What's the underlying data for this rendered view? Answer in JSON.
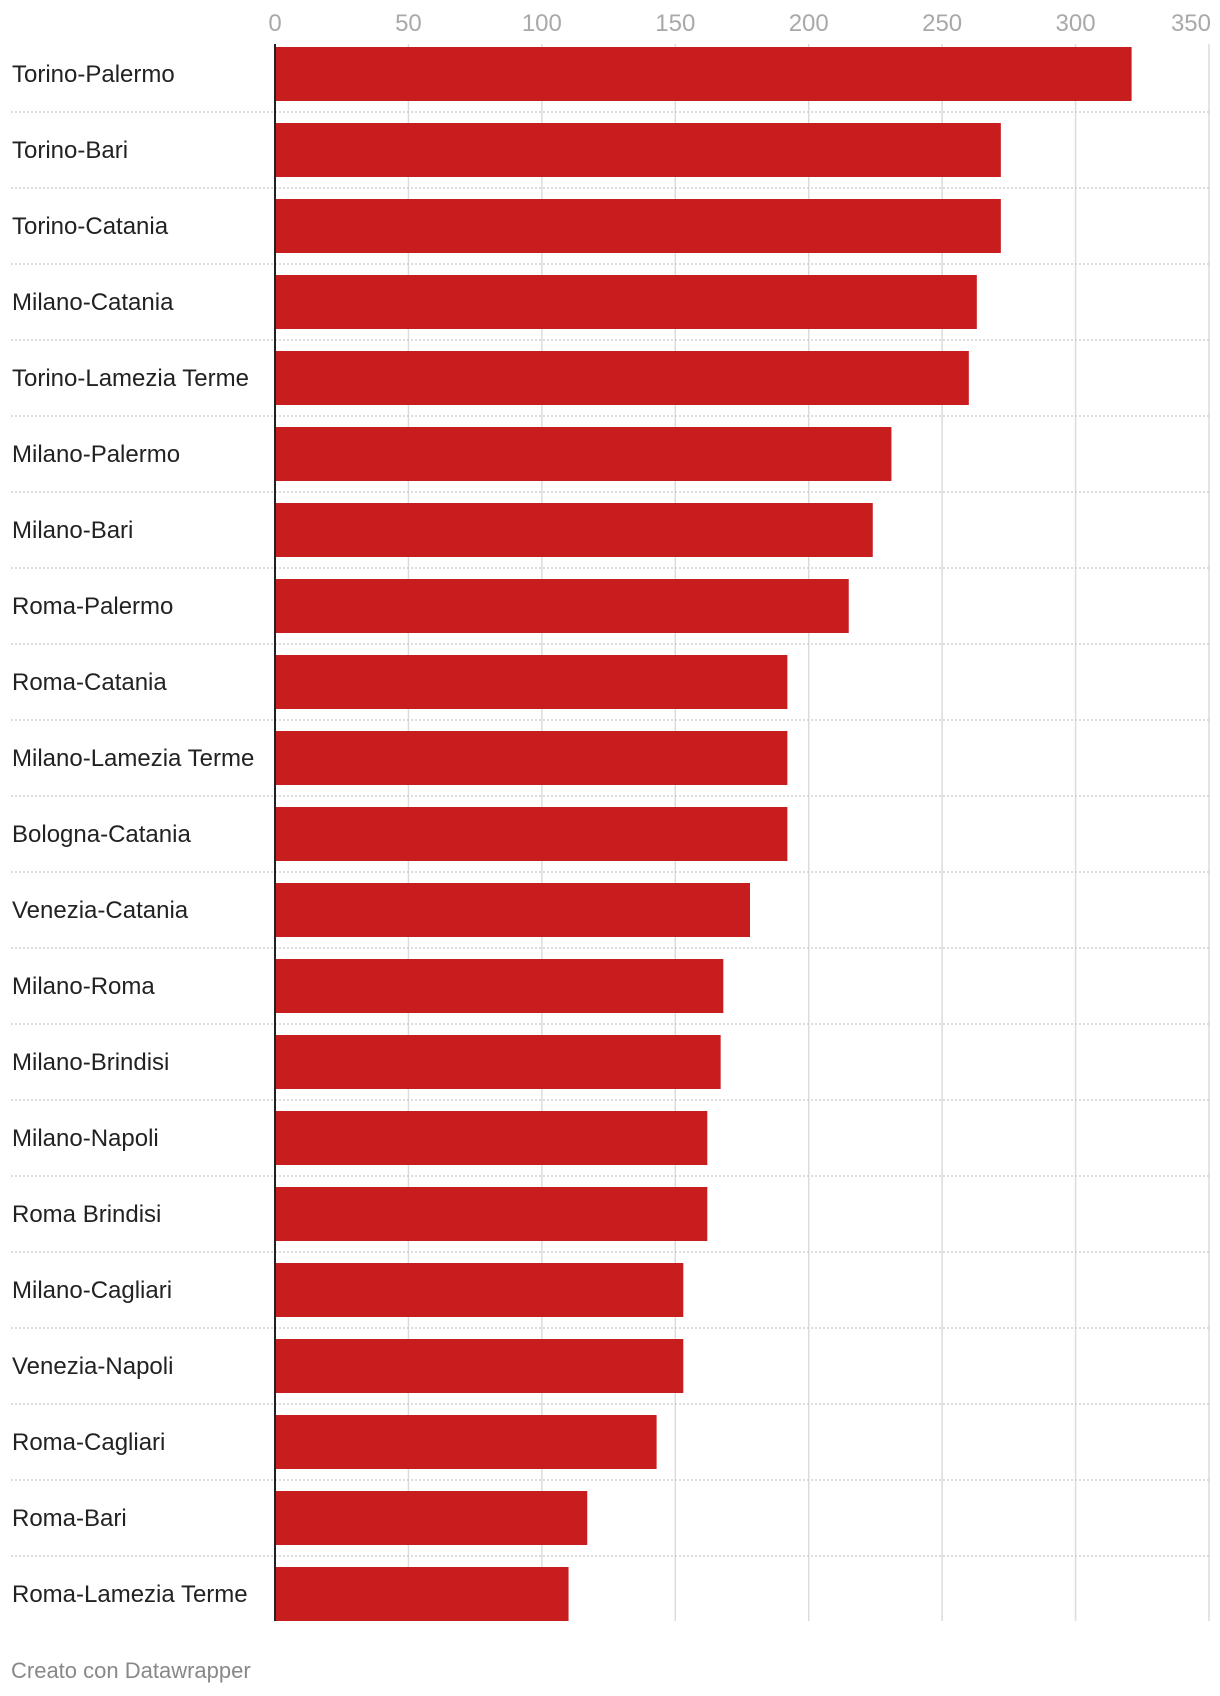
{
  "chart_data": {
    "type": "bar",
    "orientation": "horizontal",
    "title": "",
    "xlabel": "",
    "ylabel": "",
    "xlim": [
      0,
      350
    ],
    "ticks": [
      0,
      50,
      100,
      150,
      200,
      250,
      300,
      350
    ],
    "grid": true,
    "categories": [
      "Torino-Palermo",
      "Torino-Bari",
      "Torino-Catania",
      "Milano-Catania",
      "Torino-Lamezia Terme",
      "Milano-Palermo",
      "Milano-Bari",
      "Roma-Palermo",
      "Roma-Catania",
      "Milano-Lamezia Terme",
      "Bologna-Catania",
      "Venezia-Catania",
      "Milano-Roma",
      "Milano-Brindisi",
      "Milano-Napoli",
      "Roma Brindisi",
      "Milano-Cagliari",
      "Venezia-Napoli",
      "Roma-Cagliari",
      "Roma-Bari",
      "Roma-Lamezia Terme"
    ],
    "values": [
      321,
      272,
      272,
      263,
      260,
      231,
      224,
      215,
      192,
      192,
      192,
      178,
      168,
      167,
      162,
      162,
      153,
      153,
      143,
      117,
      110
    ],
    "bar_color": "#c81d1e"
  },
  "footer": {
    "credit": "Creato con Datawrapper"
  }
}
